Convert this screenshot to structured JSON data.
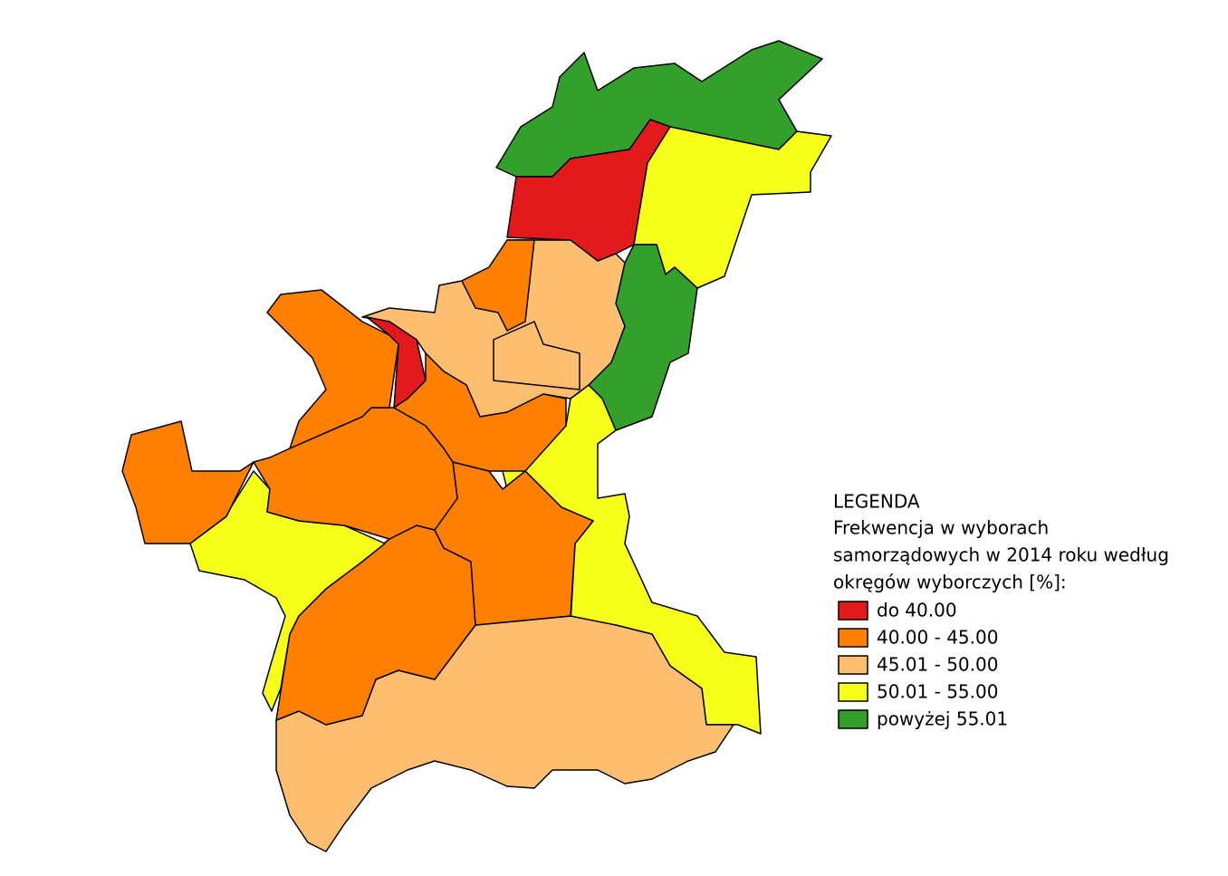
{
  "legend": {
    "title": "LEGENDA",
    "description": [
      "Frekwencja w wyborach",
      "samorządowych w 2014 roku według",
      "okręgów wyborczych [%]:"
    ],
    "items": [
      {
        "label": "do 40.00",
        "color": "#e31a1c"
      },
      {
        "label": "40.00 - 45.00",
        "color": "#ff7f00"
      },
      {
        "label": "45.01 - 50.00",
        "color": "#fdbf6f"
      },
      {
        "label": "50.01 - 55.00",
        "color": "#f5ff1a"
      },
      {
        "label": "powyżej 55.01",
        "color": "#33a02c"
      }
    ]
  }
}
